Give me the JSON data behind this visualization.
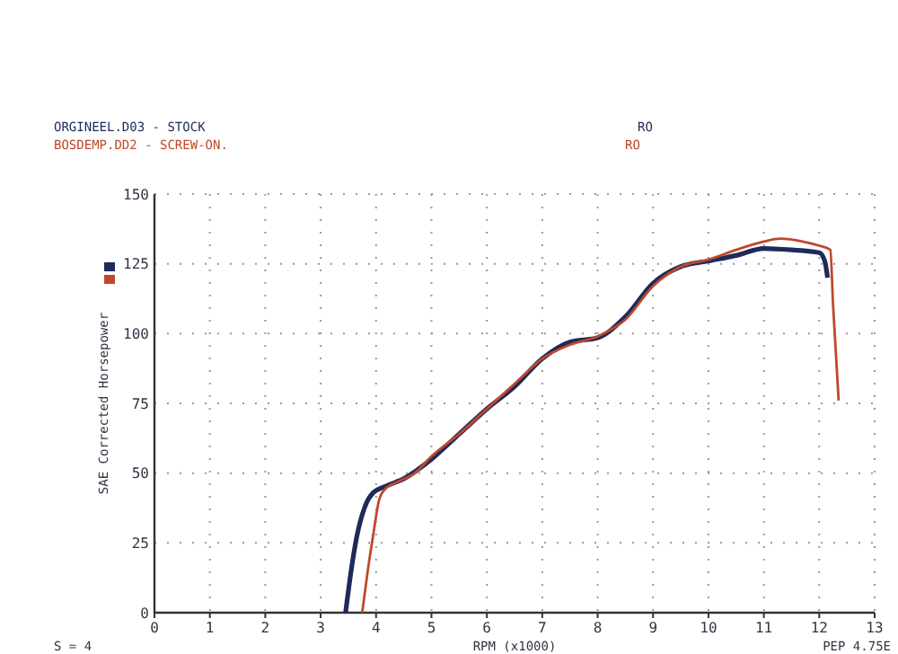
{
  "chart_data": {
    "type": "line",
    "xlabel": "RPM (x1000)",
    "ylabel": "SAE Corrected Horsepower",
    "xlim": [
      0,
      13
    ],
    "xticks": [
      0,
      1,
      2,
      3,
      4,
      5,
      6,
      7,
      8,
      9,
      10,
      11,
      12,
      13
    ],
    "ylim": [
      0,
      150
    ],
    "yticks": [
      0,
      25,
      50,
      75,
      100,
      125,
      150
    ],
    "grid": true,
    "legend": "top left",
    "marker": "none",
    "line_style": "solid",
    "annotations": [
      "RO",
      "RO",
      "S = 4",
      "PEP 4.75E"
    ],
    "series": [
      {
        "name": "ORGINEEL.D03 - STOCK",
        "color": "#1f2a5a",
        "x": [
          3.45,
          3.55,
          3.65,
          3.8,
          3.95,
          4.2,
          4.5,
          5,
          5.5,
          6,
          6.5,
          7,
          7.5,
          8,
          8.5,
          9,
          9.5,
          10,
          10.5,
          11,
          11.5,
          12,
          12.1,
          12.15
        ],
        "values": [
          0,
          15,
          27,
          38,
          43,
          45.5,
          48,
          55,
          64,
          73,
          81,
          91,
          97,
          98.5,
          106,
          118,
          124,
          126,
          128,
          130.5,
          130,
          129,
          126,
          120
        ]
      },
      {
        "name": "BOSDEMP.DD2 - SCREW-ON.",
        "color": "#c0482a",
        "x": [
          3.75,
          3.85,
          3.95,
          4.05,
          4.15,
          4.4,
          4.7,
          5,
          5.5,
          6,
          6.5,
          7,
          7.5,
          8,
          8.5,
          9,
          9.5,
          10,
          10.5,
          11,
          11.3,
          11.7,
          12,
          12.2,
          12.25,
          12.35
        ],
        "values": [
          0,
          15,
          28,
          40,
          44,
          47,
          50,
          56,
          64,
          73,
          82,
          91,
          96,
          99,
          105,
          117,
          124,
          126.5,
          130,
          133,
          134,
          133,
          131.5,
          130,
          110,
          76
        ]
      }
    ]
  }
}
